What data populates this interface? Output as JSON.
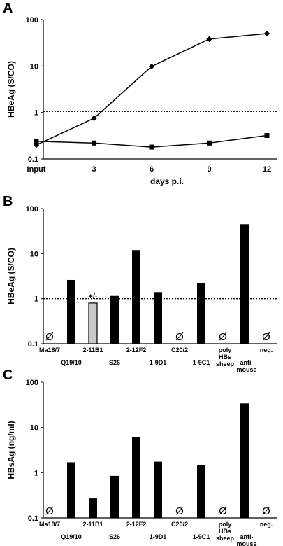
{
  "chart_data": [
    {
      "panel": "A",
      "type": "line",
      "ylabel": "HBeAg (S/CO)",
      "xlabel": "days p.i.",
      "x_ticks": [
        "Input",
        "3",
        "6",
        "9",
        "12"
      ],
      "x": [
        0,
        3,
        6,
        9,
        12
      ],
      "yscale": "log",
      "ylim": [
        0.1,
        100
      ],
      "y_ticks": [
        "0.1",
        "1",
        "10",
        "100"
      ],
      "cutoff": 1.05,
      "series": [
        {
          "marker": "diamond",
          "values": [
            0.2,
            0.75,
            9.8,
            38,
            50
          ]
        },
        {
          "marker": "square",
          "values": [
            0.24,
            0.22,
            0.18,
            0.22,
            0.32
          ]
        }
      ],
      "grid": false,
      "legend": "none"
    },
    {
      "panel": "B",
      "type": "bar",
      "ylabel": "HBeAg (S/CO)",
      "yscale": "log",
      "ylim": [
        0.1,
        100
      ],
      "y_ticks": [
        "0.1",
        "1",
        "10",
        "100"
      ],
      "cutoff": 1.0,
      "categories": [
        "Ma18/7",
        "Q19/10",
        "2-11B1",
        "S26",
        "2-12F2",
        "1-9D1",
        "C20/2",
        "1-9C1",
        "poly HBs sheep",
        "anti-mouse",
        "neg."
      ],
      "category_labels": [
        [
          "Ma18/7"
        ],
        [
          "Q19/10"
        ],
        [
          "2-11B1"
        ],
        [
          "S26"
        ],
        [
          "2-12F2"
        ],
        [
          "1-9D1"
        ],
        [
          "C20/2"
        ],
        [
          "1-9C1"
        ],
        [
          "poly",
          "HBs",
          "sheep"
        ],
        [
          "anti-",
          "mouse"
        ],
        [
          "neg."
        ]
      ],
      "values": [
        null,
        2.6,
        0.8,
        1.15,
        12,
        1.4,
        null,
        2.2,
        null,
        45,
        null
      ],
      "bar_colors": [
        "#000000",
        "#000000",
        "#c8c8c8",
        "#000000",
        "#000000",
        "#000000",
        "#000000",
        "#000000",
        "#000000",
        "#000000",
        "#000000"
      ],
      "null_symbol": "Ø",
      "annotations": [
        {
          "category": "2-11B1",
          "text": "+/-"
        }
      ],
      "grid": false,
      "legend": "none"
    },
    {
      "panel": "C",
      "type": "bar",
      "ylabel": "HBsAg (ng/ml)",
      "yscale": "log",
      "ylim": [
        0.1,
        100
      ],
      "y_ticks": [
        "0.1",
        "1",
        "10",
        "100"
      ],
      "categories": [
        "Ma18/7",
        "Q19/10",
        "2-11B1",
        "S26",
        "2-12F2",
        "1-9D1",
        "C20/2",
        "1-9C1",
        "poly HBs sheep",
        "anti-mouse",
        "neg."
      ],
      "category_labels": [
        [
          "Ma18/7"
        ],
        [
          "Q19/10"
        ],
        [
          "2-11B1"
        ],
        [
          "S26"
        ],
        [
          "2-12F2"
        ],
        [
          "1-9D1"
        ],
        [
          "C20/2"
        ],
        [
          "1-9C1"
        ],
        [
          "poly",
          "HBs",
          "sheep"
        ],
        [
          "anti-",
          "mouse"
        ],
        [
          "neg."
        ]
      ],
      "values": [
        null,
        1.7,
        0.27,
        0.85,
        6.0,
        1.75,
        null,
        1.45,
        null,
        34,
        null
      ],
      "null_symbol": "Ø",
      "grid": false,
      "legend": "none"
    }
  ]
}
